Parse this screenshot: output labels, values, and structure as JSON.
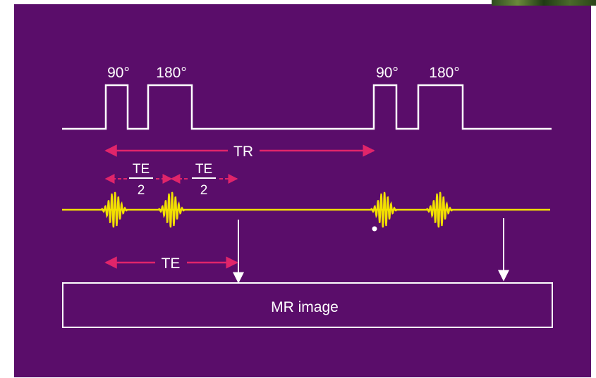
{
  "colors": {
    "background": "#5a0d6a",
    "rf_line": "#ffffff",
    "signal": "#f2e000",
    "timing_arrow": "#e0256a",
    "text": "#ffffff"
  },
  "rf_pulses": {
    "first_90": "90°",
    "first_180": "180°",
    "second_90": "90°",
    "second_180": "180°"
  },
  "timing": {
    "tr_label": "TR",
    "te_half_numerator_1": "TE",
    "te_half_denominator_1": "2",
    "te_half_numerator_2": "TE",
    "te_half_denominator_2": "2",
    "te_label": "TE"
  },
  "image_box": {
    "label": "MR image"
  }
}
